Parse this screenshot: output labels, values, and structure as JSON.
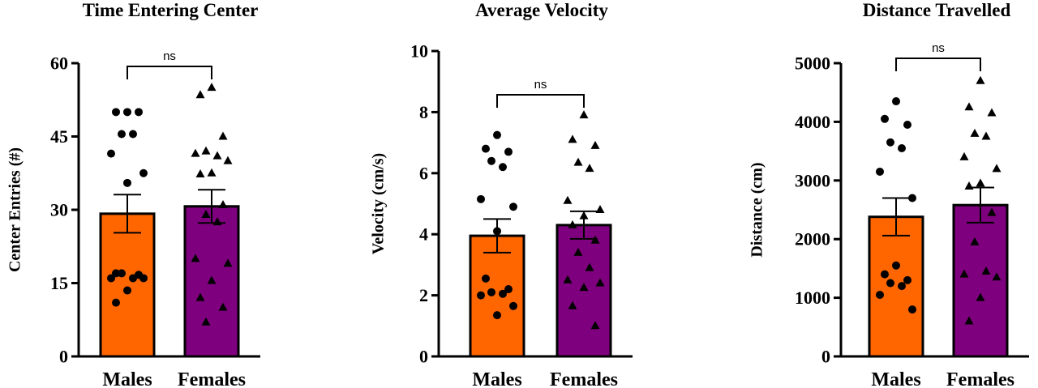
{
  "colors": {
    "males": "#ff6600",
    "females": "#7f007f",
    "ink": "#000000"
  },
  "chart_data": [
    {
      "type": "bar",
      "title": "Time Entering Center",
      "ylabel": "Center Entries (#)",
      "xlabel": "",
      "ylim": [
        0,
        60
      ],
      "yticks": [
        0,
        15,
        30,
        45,
        60
      ],
      "categories": [
        "Males",
        "Females"
      ],
      "values": [
        29.2,
        30.7
      ],
      "sem": [
        3.9,
        3.4
      ],
      "points": [
        [
          50,
          50,
          50,
          45.5,
          45.5,
          41.5,
          37.5,
          35.5,
          17,
          16.7,
          17,
          16,
          16,
          16,
          13.5,
          11
        ],
        [
          55,
          53.5,
          45,
          42,
          41,
          41.5,
          40,
          37.5,
          37.3,
          31,
          29,
          27.5,
          20,
          19,
          15.5,
          12,
          10,
          7
        ]
      ],
      "markers": [
        "circle",
        "triangle"
      ],
      "significance": "ns"
    },
    {
      "type": "bar",
      "title": "Average Velocity",
      "ylabel": "Velocity (cm/s)",
      "xlabel": "",
      "ylim": [
        0,
        10
      ],
      "yticks": [
        0,
        2,
        4,
        6,
        8,
        10
      ],
      "categories": [
        "Males",
        "Females"
      ],
      "values": [
        3.95,
        4.3
      ],
      "sem": [
        0.55,
        0.45
      ],
      "points": [
        [
          7.25,
          6.8,
          6.7,
          6.4,
          6.2,
          5.15,
          4.9,
          4.1,
          2.55,
          2.2,
          2.1,
          2.05,
          2.0,
          1.65,
          1.35
        ],
        [
          7.9,
          7.1,
          6.9,
          6.35,
          6.15,
          5.1,
          4.8,
          4.6,
          4.3,
          3.8,
          3.4,
          2.9,
          2.5,
          2.4,
          2.25,
          1.65,
          1.0
        ]
      ],
      "markers": [
        "circle",
        "triangle"
      ],
      "significance": "ns"
    },
    {
      "type": "bar",
      "title": "Distance Travelled",
      "ylabel": "Distance (cm)",
      "xlabel": "",
      "ylim": [
        0,
        5000
      ],
      "yticks": [
        0,
        1000,
        2000,
        3000,
        4000,
        5000
      ],
      "categories": [
        "Males",
        "Females"
      ],
      "values": [
        2380,
        2580
      ],
      "sem": [
        320,
        300
      ],
      "points": [
        [
          4350,
          4050,
          3950,
          3650,
          3550,
          3150,
          2700,
          1550,
          1400,
          1300,
          1250,
          1200,
          1050,
          800
        ],
        [
          4700,
          4250,
          4150,
          3800,
          3750,
          3400,
          3200,
          2950,
          2900,
          2450,
          1950,
          1450,
          1400,
          1350,
          1000,
          600
        ]
      ],
      "markers": [
        "circle",
        "triangle"
      ],
      "significance": "ns"
    }
  ]
}
